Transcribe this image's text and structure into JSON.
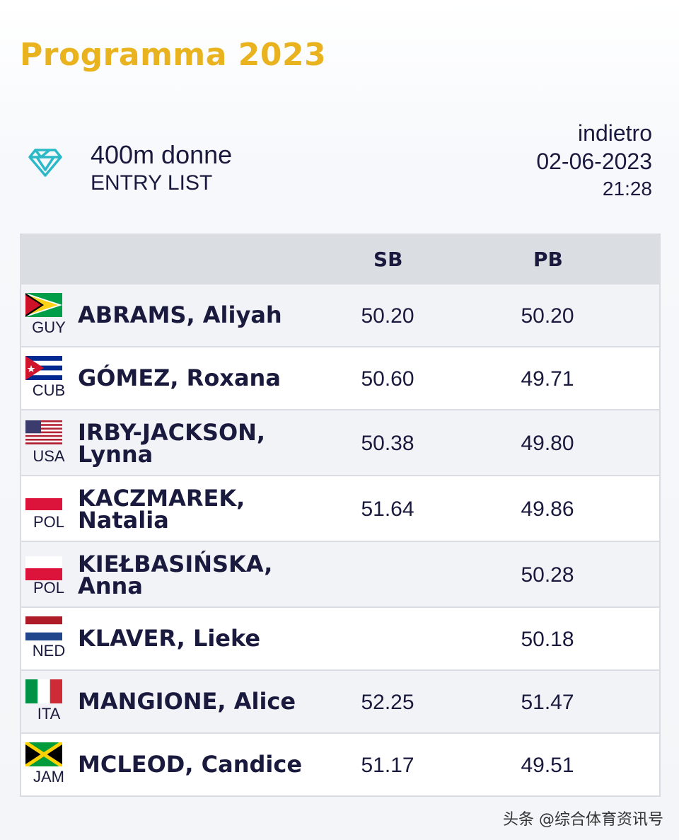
{
  "header": {
    "title": "Programma 2023",
    "event_name": "400m donne",
    "event_sub": "ENTRY LIST",
    "back_label": "indietro",
    "date": "02-06-2023",
    "time": "21:28",
    "icon": "diamond-league-icon",
    "accent_color": "#e9b31f",
    "icon_color": "#2bb9c8"
  },
  "table": {
    "columns": [
      "",
      "SB",
      "PB"
    ],
    "rows": [
      {
        "country": "GUY",
        "name_line1": "ABRAMS, Aliyah",
        "name_line2": "",
        "sb": "50.20",
        "pb": "50.20"
      },
      {
        "country": "CUB",
        "name_line1": "GÓMEZ, Roxana",
        "name_line2": "",
        "sb": "50.60",
        "pb": "49.71"
      },
      {
        "country": "USA",
        "name_line1": "IRBY-JACKSON,",
        "name_line2": "Lynna",
        "sb": "50.38",
        "pb": "49.80"
      },
      {
        "country": "POL",
        "name_line1": "KACZMAREK,",
        "name_line2": "Natalia",
        "sb": "51.64",
        "pb": "49.86"
      },
      {
        "country": "POL",
        "name_line1": "KIEŁBASIŃSKA,",
        "name_line2": "Anna",
        "sb": "",
        "pb": "50.28"
      },
      {
        "country": "NED",
        "name_line1": "KLAVER, Lieke",
        "name_line2": "",
        "sb": "",
        "pb": "50.18"
      },
      {
        "country": "ITA",
        "name_line1": "MANGIONE, Alice",
        "name_line2": "",
        "sb": "52.25",
        "pb": "51.47"
      },
      {
        "country": "JAM",
        "name_line1": "MCLEOD, Candice",
        "name_line2": "",
        "sb": "51.17",
        "pb": "49.51"
      }
    ]
  },
  "watermark": "头条 @综合体育资讯号"
}
